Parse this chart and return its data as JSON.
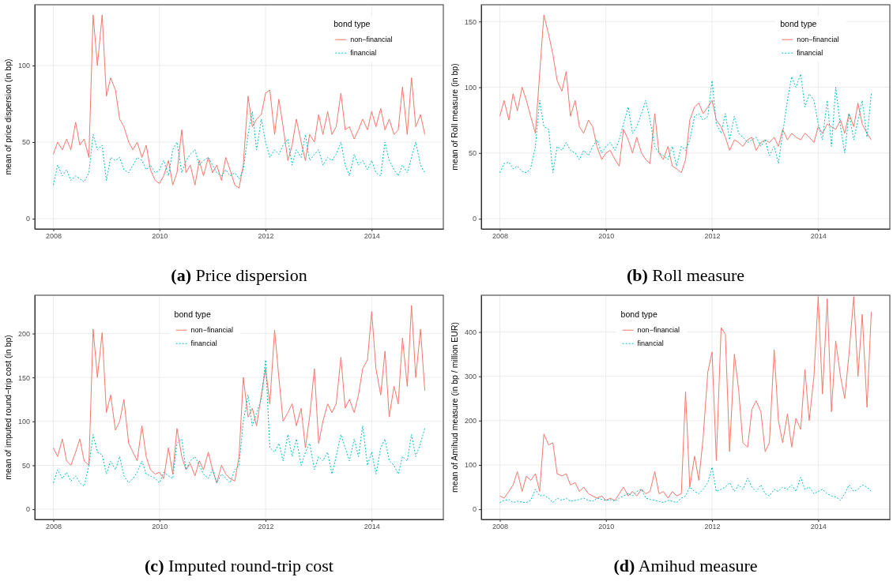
{
  "chart_data": [
    {
      "type": "line",
      "title": "(a) Price dispersion",
      "ylabel": "mean of price dispersion (in bp)",
      "legend_title": "bond type",
      "legend": "top right",
      "grid": true,
      "xlim": [
        2007.65,
        2015.35
      ],
      "xticks": [
        2008,
        2010,
        2012,
        2014
      ],
      "ylim": [
        -6.65,
        139.65
      ],
      "yticks": [
        0,
        50,
        100
      ],
      "x": [
        2008,
        2008.08,
        2008.17,
        2008.25,
        2008.33,
        2008.42,
        2008.5,
        2008.58,
        2008.67,
        2008.75,
        2008.83,
        2008.92,
        2009,
        2009.08,
        2009.17,
        2009.25,
        2009.33,
        2009.42,
        2009.5,
        2009.58,
        2009.67,
        2009.75,
        2009.83,
        2009.92,
        2010,
        2010.08,
        2010.17,
        2010.25,
        2010.33,
        2010.42,
        2010.5,
        2010.58,
        2010.67,
        2010.75,
        2010.83,
        2010.92,
        2011,
        2011.08,
        2011.17,
        2011.25,
        2011.33,
        2011.42,
        2011.5,
        2011.58,
        2011.67,
        2011.75,
        2011.83,
        2011.92,
        2012,
        2012.08,
        2012.17,
        2012.25,
        2012.33,
        2012.42,
        2012.5,
        2012.58,
        2012.67,
        2012.75,
        2012.83,
        2012.92,
        2013,
        2013.08,
        2013.17,
        2013.25,
        2013.33,
        2013.42,
        2013.5,
        2013.58,
        2013.67,
        2013.75,
        2013.83,
        2013.92,
        2014,
        2014.08,
        2014.17,
        2014.25,
        2014.33,
        2014.42,
        2014.5,
        2014.58,
        2014.67,
        2014.75,
        2014.83,
        2014.92,
        2015
      ],
      "series": [
        {
          "name": "non−financial",
          "color": "#f8766d",
          "line_style": "solid",
          "values": [
            42,
            50,
            45,
            52,
            45,
            63,
            48,
            52,
            40,
            133,
            100,
            133,
            80,
            92,
            84,
            65,
            60,
            50,
            45,
            50,
            40,
            48,
            32,
            25,
            23,
            28,
            38,
            22,
            30,
            58,
            30,
            35,
            22,
            38,
            28,
            40,
            30,
            35,
            25,
            40,
            32,
            22,
            20,
            35,
            80,
            60,
            65,
            68,
            82,
            84,
            55,
            78,
            60,
            38,
            48,
            65,
            50,
            38,
            55,
            50,
            68,
            55,
            70,
            55,
            60,
            82,
            58,
            60,
            52,
            58,
            65,
            58,
            70,
            60,
            72,
            58,
            65,
            55,
            58,
            86,
            55,
            92,
            60,
            68,
            55
          ]
        },
        {
          "name": "financial",
          "color": "#00bfc4",
          "line_style": "dotted",
          "values": [
            22,
            35,
            28,
            32,
            25,
            28,
            26,
            24,
            30,
            55,
            45,
            48,
            25,
            40,
            38,
            40,
            32,
            30,
            35,
            40,
            38,
            32,
            35,
            30,
            32,
            38,
            28,
            45,
            50,
            30,
            38,
            42,
            45,
            35,
            38,
            40,
            35,
            30,
            28,
            32,
            28,
            30,
            26,
            32,
            55,
            70,
            45,
            65,
            50,
            40,
            45,
            42,
            48,
            52,
            35,
            45,
            40,
            55,
            38,
            42,
            45,
            35,
            40,
            38,
            42,
            50,
            35,
            28,
            42,
            35,
            38,
            32,
            38,
            30,
            28,
            50,
            38,
            32,
            28,
            35,
            30,
            40,
            50,
            35,
            30
          ]
        }
      ]
    },
    {
      "type": "line",
      "title": "(b) Roll measure",
      "ylabel": "mean of Roll measure (in bp)",
      "legend_title": "bond type",
      "legend": "top right",
      "grid": true,
      "xlim": [
        2007.65,
        2015.35
      ],
      "xticks": [
        2008,
        2010,
        2012,
        2014
      ],
      "ylim": [
        -7.75,
        162.75
      ],
      "yticks": [
        0,
        50,
        100,
        150
      ],
      "x": [
        2008,
        2008.08,
        2008.17,
        2008.25,
        2008.33,
        2008.42,
        2008.5,
        2008.58,
        2008.67,
        2008.75,
        2008.83,
        2008.92,
        2009,
        2009.08,
        2009.17,
        2009.25,
        2009.33,
        2009.42,
        2009.5,
        2009.58,
        2009.67,
        2009.75,
        2009.83,
        2009.92,
        2010,
        2010.08,
        2010.17,
        2010.25,
        2010.33,
        2010.42,
        2010.5,
        2010.58,
        2010.67,
        2010.75,
        2010.83,
        2010.92,
        2011,
        2011.08,
        2011.17,
        2011.25,
        2011.33,
        2011.42,
        2011.5,
        2011.58,
        2011.67,
        2011.75,
        2011.83,
        2011.92,
        2012,
        2012.08,
        2012.17,
        2012.25,
        2012.33,
        2012.42,
        2012.5,
        2012.58,
        2012.67,
        2012.75,
        2012.83,
        2012.92,
        2013,
        2013.08,
        2013.17,
        2013.25,
        2013.33,
        2013.42,
        2013.5,
        2013.58,
        2013.67,
        2013.75,
        2013.83,
        2013.92,
        2014,
        2014.08,
        2014.17,
        2014.25,
        2014.33,
        2014.42,
        2014.5,
        2014.58,
        2014.67,
        2014.75,
        2014.83,
        2014.92,
        2015
      ],
      "series": [
        {
          "name": "non−financial",
          "color": "#f8766d",
          "line_style": "solid",
          "values": [
            78,
            90,
            75,
            95,
            82,
            100,
            90,
            78,
            65,
            110,
            155,
            140,
            125,
            105,
            97,
            112,
            78,
            90,
            70,
            65,
            75,
            70,
            55,
            45,
            50,
            52,
            45,
            40,
            68,
            60,
            50,
            62,
            50,
            45,
            42,
            80,
            50,
            45,
            55,
            40,
            38,
            35,
            45,
            75,
            85,
            88,
            80,
            85,
            90,
            75,
            70,
            62,
            52,
            60,
            58,
            55,
            60,
            62,
            52,
            58,
            60,
            58,
            62,
            55,
            68,
            60,
            65,
            62,
            60,
            65,
            62,
            58,
            70,
            65,
            72,
            70,
            68,
            75,
            65,
            80,
            70,
            88,
            72,
            65,
            60
          ]
        },
        {
          "name": "financial",
          "color": "#00bfc4",
          "line_style": "dotted",
          "values": [
            35,
            42,
            43,
            38,
            40,
            36,
            35,
            38,
            55,
            90,
            70,
            68,
            35,
            55,
            52,
            58,
            52,
            50,
            45,
            52,
            48,
            55,
            60,
            50,
            55,
            58,
            52,
            60,
            72,
            85,
            65,
            70,
            80,
            90,
            75,
            55,
            50,
            48,
            45,
            55,
            40,
            55,
            52,
            60,
            78,
            80,
            75,
            78,
            105,
            72,
            65,
            80,
            60,
            78,
            65,
            62,
            58,
            60,
            62,
            55,
            60,
            48,
            55,
            42,
            65,
            90,
            108,
            100,
            110,
            85,
            95,
            90,
            72,
            60,
            90,
            55,
            100,
            70,
            50,
            80,
            60,
            75,
            90,
            62,
            95
          ]
        }
      ]
    },
    {
      "type": "line",
      "title": "(c) Imputed round-trip cost",
      "ylabel": "mean of imputed round−trip cost (in bp)",
      "legend_title": "bond type",
      "legend": "top left",
      "grid": true,
      "xlim": [
        2007.65,
        2015.35
      ],
      "xticks": [
        2008,
        2010,
        2012,
        2014
      ],
      "ylim": [
        -11.6,
        243.6
      ],
      "yticks": [
        0,
        50,
        100,
        150,
        200
      ],
      "x": [
        2008,
        2008.08,
        2008.17,
        2008.25,
        2008.33,
        2008.42,
        2008.5,
        2008.58,
        2008.67,
        2008.75,
        2008.83,
        2008.92,
        2009,
        2009.08,
        2009.17,
        2009.25,
        2009.33,
        2009.42,
        2009.5,
        2009.58,
        2009.67,
        2009.75,
        2009.83,
        2009.92,
        2010,
        2010.08,
        2010.17,
        2010.25,
        2010.33,
        2010.42,
        2010.5,
        2010.58,
        2010.67,
        2010.75,
        2010.83,
        2010.92,
        2011,
        2011.08,
        2011.17,
        2011.25,
        2011.33,
        2011.42,
        2011.5,
        2011.58,
        2011.67,
        2011.75,
        2011.83,
        2011.92,
        2012,
        2012.08,
        2012.17,
        2012.25,
        2012.33,
        2012.42,
        2012.5,
        2012.58,
        2012.67,
        2012.75,
        2012.83,
        2012.92,
        2013,
        2013.08,
        2013.17,
        2013.25,
        2013.33,
        2013.42,
        2013.5,
        2013.58,
        2013.67,
        2013.75,
        2013.83,
        2013.92,
        2014,
        2014.08,
        2014.17,
        2014.25,
        2014.33,
        2014.42,
        2014.5,
        2014.58,
        2014.67,
        2014.75,
        2014.83,
        2014.92,
        2015
      ],
      "series": [
        {
          "name": "non−financial",
          "color": "#f8766d",
          "line_style": "solid",
          "values": [
            70,
            60,
            80,
            55,
            50,
            65,
            80,
            55,
            50,
            205,
            150,
            201,
            110,
            130,
            90,
            100,
            125,
            75,
            65,
            55,
            95,
            60,
            45,
            40,
            42,
            35,
            70,
            40,
            92,
            60,
            45,
            52,
            38,
            55,
            45,
            65,
            45,
            30,
            50,
            40,
            35,
            32,
            60,
            150,
            105,
            115,
            95,
            130,
            160,
            120,
            204,
            150,
            100,
            110,
            120,
            95,
            115,
            70,
            105,
            160,
            75,
            100,
            120,
            110,
            120,
            173,
            115,
            125,
            110,
            130,
            160,
            170,
            225,
            160,
            130,
            180,
            105,
            140,
            120,
            195,
            140,
            232,
            150,
            205,
            135
          ]
        },
        {
          "name": "financial",
          "color": "#00bfc4",
          "line_style": "dotted",
          "values": [
            30,
            45,
            35,
            42,
            32,
            38,
            30,
            26,
            50,
            85,
            65,
            62,
            40,
            55,
            45,
            60,
            38,
            30,
            35,
            42,
            55,
            40,
            38,
            35,
            30,
            42,
            38,
            35,
            75,
            80,
            45,
            55,
            60,
            50,
            40,
            35,
            45,
            30,
            40,
            35,
            30,
            45,
            50,
            100,
            130,
            95,
            110,
            125,
            170,
            70,
            65,
            75,
            55,
            85,
            60,
            80,
            50,
            65,
            75,
            45,
            60,
            55,
            65,
            40,
            60,
            85,
            70,
            55,
            80,
            60,
            95,
            50,
            65,
            40,
            70,
            80,
            55,
            50,
            40,
            60,
            55,
            85,
            60,
            75,
            92
          ]
        }
      ]
    },
    {
      "type": "line",
      "title": "(d) Amihud measure",
      "ylabel": "mean of Amihud measure (in bp / million EUR)",
      "legend_title": "bond type",
      "legend": "top left",
      "grid": true,
      "xlim": [
        2007.65,
        2015.35
      ],
      "xticks": [
        2008,
        2010,
        2012,
        2014
      ],
      "ylim": [
        -23,
        483
      ],
      "yticks": [
        0,
        100,
        200,
        300,
        400
      ],
      "x": [
        2008,
        2008.08,
        2008.17,
        2008.25,
        2008.33,
        2008.42,
        2008.5,
        2008.58,
        2008.67,
        2008.75,
        2008.83,
        2008.92,
        2009,
        2009.08,
        2009.17,
        2009.25,
        2009.33,
        2009.42,
        2009.5,
        2009.58,
        2009.67,
        2009.75,
        2009.83,
        2009.92,
        2010,
        2010.08,
        2010.17,
        2010.25,
        2010.33,
        2010.42,
        2010.5,
        2010.58,
        2010.67,
        2010.75,
        2010.83,
        2010.92,
        2011,
        2011.08,
        2011.17,
        2011.25,
        2011.33,
        2011.42,
        2011.5,
        2011.58,
        2011.67,
        2011.75,
        2011.83,
        2011.92,
        2012,
        2012.08,
        2012.17,
        2012.25,
        2012.33,
        2012.42,
        2012.5,
        2012.58,
        2012.67,
        2012.75,
        2012.83,
        2012.92,
        2013,
        2013.08,
        2013.17,
        2013.25,
        2013.33,
        2013.42,
        2013.5,
        2013.58,
        2013.67,
        2013.75,
        2013.83,
        2013.92,
        2014,
        2014.08,
        2014.17,
        2014.25,
        2014.33,
        2014.42,
        2014.5,
        2014.58,
        2014.67,
        2014.75,
        2014.83,
        2014.92,
        2015
      ],
      "series": [
        {
          "name": "non−financial",
          "color": "#f8766d",
          "line_style": "solid",
          "values": [
            30,
            25,
            40,
            55,
            85,
            40,
            75,
            65,
            80,
            40,
            170,
            145,
            150,
            80,
            75,
            80,
            55,
            60,
            40,
            50,
            35,
            30,
            25,
            30,
            20,
            25,
            20,
            35,
            50,
            30,
            40,
            30,
            45,
            35,
            40,
            85,
            35,
            40,
            25,
            40,
            30,
            35,
            265,
            50,
            120,
            65,
            160,
            310,
            355,
            110,
            410,
            395,
            130,
            350,
            270,
            150,
            140,
            225,
            245,
            220,
            130,
            150,
            360,
            200,
            150,
            215,
            140,
            205,
            180,
            315,
            200,
            300,
            480,
            260,
            475,
            220,
            380,
            300,
            250,
            350,
            480,
            300,
            440,
            230,
            445
          ]
        },
        {
          "name": "financial",
          "color": "#00bfc4",
          "line_style": "dotted",
          "values": [
            15,
            20,
            22,
            15,
            18,
            16,
            15,
            20,
            45,
            30,
            32,
            25,
            15,
            25,
            20,
            25,
            18,
            20,
            22,
            25,
            20,
            18,
            25,
            22,
            20,
            22,
            18,
            25,
            30,
            35,
            30,
            40,
            45,
            25,
            22,
            20,
            18,
            15,
            20,
            18,
            15,
            25,
            30,
            50,
            40,
            35,
            45,
            60,
            95,
            40,
            45,
            50,
            60,
            40,
            55,
            45,
            70,
            50,
            40,
            55,
            35,
            30,
            45,
            40,
            50,
            45,
            55,
            40,
            72,
            45,
            50,
            35,
            40,
            45,
            35,
            30,
            28,
            20,
            35,
            55,
            40,
            45,
            55,
            50,
            40
          ]
        }
      ]
    }
  ]
}
